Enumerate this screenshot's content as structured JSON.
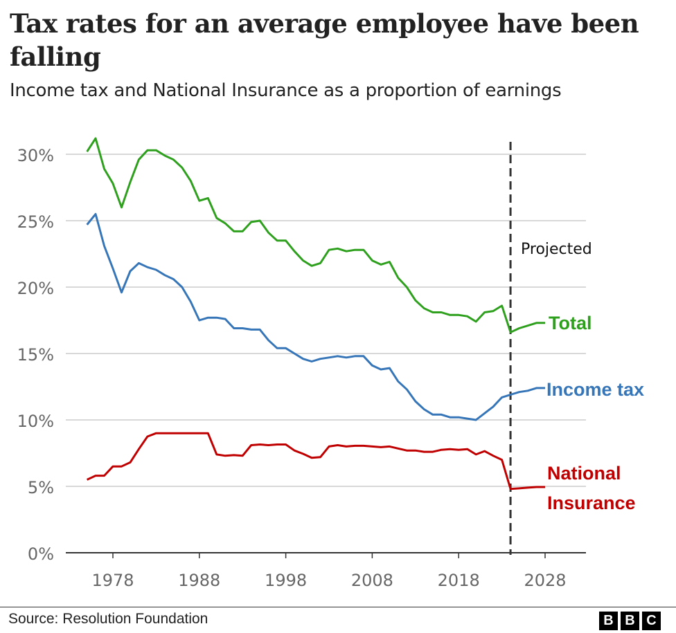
{
  "title": "Tax rates for an average employee have been falling",
  "subtitle": "Income tax and National Insurance as a proportion of earnings",
  "source": "Source: Resolution Foundation",
  "logo": "BBC",
  "chart_data": {
    "type": "line",
    "title": "Tax rates for an average employee have been falling",
    "subtitle": "Income tax and National Insurance as a proportion of earnings",
    "xlabel": "",
    "ylabel": "",
    "ylim": [
      0,
      30
    ],
    "xlim": [
      1975,
      2028
    ],
    "yticks": [
      "0%",
      "5%",
      "10%",
      "15%",
      "20%",
      "25%",
      "30%"
    ],
    "xticks": [
      "1978",
      "1988",
      "1998",
      "2008",
      "2018",
      "2028"
    ],
    "grid": "horizontal",
    "annotation": {
      "label": "Projected",
      "year": 2024,
      "style": "dashed vertical line"
    },
    "x": [
      1975,
      1976,
      1977,
      1978,
      1979,
      1980,
      1981,
      1982,
      1983,
      1984,
      1985,
      1986,
      1987,
      1988,
      1989,
      1990,
      1991,
      1992,
      1993,
      1994,
      1995,
      1996,
      1997,
      1998,
      1999,
      2000,
      2001,
      2002,
      2003,
      2004,
      2005,
      2006,
      2007,
      2008,
      2009,
      2010,
      2011,
      2012,
      2013,
      2014,
      2015,
      2016,
      2017,
      2018,
      2019,
      2020,
      2021,
      2022,
      2023,
      2024,
      2025,
      2026,
      2027,
      2028
    ],
    "series": [
      {
        "name": "Total",
        "color": "#2ea01e",
        "values": [
          30.2,
          31.2,
          28.9,
          27.8,
          26.0,
          27.9,
          29.6,
          30.3,
          30.3,
          29.9,
          29.6,
          29.0,
          28.0,
          26.5,
          26.7,
          25.2,
          24.8,
          24.2,
          24.2,
          24.9,
          25.0,
          24.1,
          23.5,
          23.5,
          22.7,
          22.0,
          21.6,
          21.8,
          22.8,
          22.9,
          22.7,
          22.8,
          22.8,
          22.0,
          21.7,
          21.9,
          20.7,
          20.0,
          19.0,
          18.4,
          18.1,
          18.1,
          17.9,
          17.9,
          17.8,
          17.4,
          18.1,
          18.2,
          18.6,
          16.6,
          16.9,
          17.1,
          17.3,
          17.3
        ]
      },
      {
        "name": "Income tax",
        "color": "#3676b8",
        "values": [
          24.7,
          25.5,
          23.1,
          21.4,
          19.6,
          21.2,
          21.8,
          21.5,
          21.3,
          20.9,
          20.6,
          20.0,
          18.9,
          17.5,
          17.7,
          17.7,
          17.6,
          16.9,
          16.9,
          16.8,
          16.8,
          16.0,
          15.4,
          15.4,
          15.0,
          14.6,
          14.4,
          14.6,
          14.7,
          14.8,
          14.7,
          14.8,
          14.8,
          14.1,
          13.8,
          13.9,
          12.9,
          12.3,
          11.4,
          10.8,
          10.4,
          10.4,
          10.2,
          10.2,
          10.1,
          10.0,
          10.5,
          11.0,
          11.7,
          11.9,
          12.1,
          12.2,
          12.4,
          12.4
        ]
      },
      {
        "name": "National Insurance",
        "color": "#c00000",
        "values": [
          5.5,
          5.8,
          5.8,
          6.5,
          6.5,
          6.8,
          7.8,
          8.75,
          9.0,
          9.0,
          9.0,
          9.0,
          9.0,
          9.0,
          9.0,
          7.4,
          7.3,
          7.35,
          7.3,
          8.1,
          8.15,
          8.1,
          8.15,
          8.15,
          7.7,
          7.45,
          7.15,
          7.2,
          8.0,
          8.1,
          8.0,
          8.05,
          8.05,
          8.0,
          7.95,
          8.0,
          7.85,
          7.7,
          7.7,
          7.6,
          7.6,
          7.75,
          7.8,
          7.75,
          7.8,
          7.4,
          7.65,
          7.3,
          7.0,
          4.8,
          4.85,
          4.9,
          4.95,
          4.95
        ]
      }
    ],
    "series_labels": {
      "total": "Total",
      "income_tax": "Income tax",
      "national_insurance_line1": "National",
      "national_insurance_line2": "Insurance"
    }
  }
}
